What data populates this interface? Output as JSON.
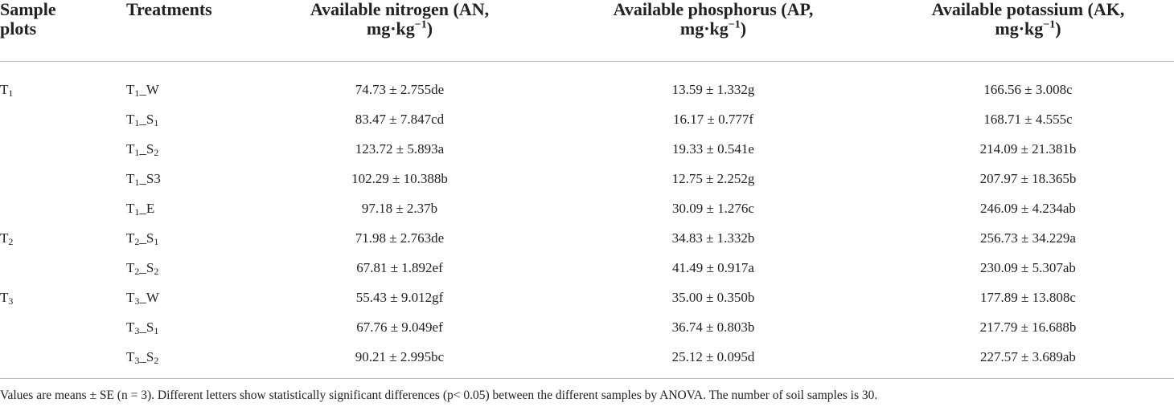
{
  "table": {
    "headers": [
      {
        "line1": "Sample",
        "line2": "plots"
      },
      {
        "line1": "Treatments"
      },
      {
        "line1": "Available nitrogen (AN,",
        "line2": "mg·kg",
        "sup": "−1",
        "end": ")"
      },
      {
        "line1": "Available phosphorus (AP,",
        "line2": "mg·kg",
        "sup": "−1",
        "end": ")"
      },
      {
        "line1": "Available potassium (AK,",
        "line2": "mg·kg",
        "sup": "−1",
        "end": ")"
      }
    ],
    "rows": [
      {
        "plot": [
          "T",
          "1"
        ],
        "treatment": [
          "T",
          "1",
          "_W"
        ],
        "an": "74.73 ± 2.755de",
        "ap": "13.59 ± 1.332g",
        "ak": "166.56 ± 3.008c"
      },
      {
        "treatment": [
          "T",
          "1",
          "_S",
          "1"
        ],
        "an": "83.47 ± 7.847cd",
        "ap": "16.17 ± 0.777f",
        "ak": "168.71 ± 4.555c"
      },
      {
        "treatment": [
          "T",
          "1",
          "_S",
          "2"
        ],
        "an": "123.72 ± 5.893a",
        "ap": "19.33 ± 0.541e",
        "ak": "214.09 ± 21.381b"
      },
      {
        "treatment": [
          "T",
          "1",
          "_S3"
        ],
        "an": "102.29 ± 10.388b",
        "ap": "12.75 ± 2.252g",
        "ak": "207.97 ± 18.365b"
      },
      {
        "treatment": [
          "T",
          "1",
          "_E"
        ],
        "an": "97.18 ± 2.37b",
        "ap": "30.09 ± 1.276c",
        "ak": "246.09 ± 4.234ab"
      },
      {
        "plot": [
          "T",
          "2"
        ],
        "treatment": [
          "T",
          "2",
          "_S",
          "1"
        ],
        "an": "71.98 ± 2.763de",
        "ap": "34.83 ± 1.332b",
        "ak": "256.73 ± 34.229a"
      },
      {
        "treatment": [
          "T",
          "2",
          "_S",
          "2"
        ],
        "an": "67.81 ± 1.892ef",
        "ap": "41.49 ± 0.917a",
        "ak": "230.09 ± 5.307ab"
      },
      {
        "plot": [
          "T",
          "3"
        ],
        "treatment": [
          "T",
          "3",
          "_W"
        ],
        "an": "55.43 ± 9.012gf",
        "ap": "35.00 ± 0.350b",
        "ak": "177.89 ± 13.808c"
      },
      {
        "treatment": [
          "T",
          "3",
          "_S",
          "1"
        ],
        "an": "67.76 ± 9.049ef",
        "ap": "36.74 ± 0.803b",
        "ak": "217.79 ± 16.688b"
      },
      {
        "treatment": [
          "T",
          "3",
          "_S",
          "2"
        ],
        "an": "90.21 ± 2.995bc",
        "ap": "25.12 ± 0.095d",
        "ak": "227.57 ± 3.689ab"
      }
    ],
    "footnote": "Values are means ± SE (n = 3). Different letters show statistically significant differences (p< 0.05) between the different samples by ANOVA. The number of soil samples is 30."
  }
}
